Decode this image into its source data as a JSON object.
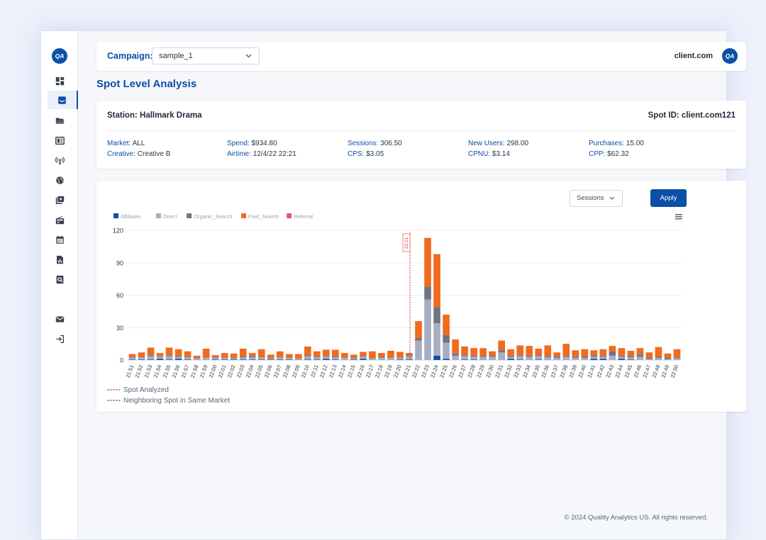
{
  "brand": {
    "logo_text": "QA",
    "accent": "#0b4fa6"
  },
  "sidebar": {
    "items": [
      {
        "icon": "dashboard-icon",
        "active": false
      },
      {
        "icon": "inbox-icon",
        "active": true
      },
      {
        "icon": "folder-open-icon",
        "active": false
      },
      {
        "icon": "newspaper-icon",
        "active": false
      },
      {
        "icon": "broadcast-icon",
        "active": false
      },
      {
        "icon": "globe-icon",
        "active": false
      },
      {
        "icon": "video-library-icon",
        "active": false
      },
      {
        "icon": "radio-icon",
        "active": false
      },
      {
        "icon": "calendar-icon",
        "active": false
      },
      {
        "icon": "report-icon",
        "active": false
      },
      {
        "icon": "search-document-icon",
        "active": false
      },
      {
        "icon": "mail-icon",
        "active": false
      },
      {
        "icon": "logout-icon",
        "active": false
      }
    ]
  },
  "header": {
    "campaign_label": "Campaign:",
    "campaign_value": "sample_1",
    "client_name": "client.com",
    "client_logo_text": "QA"
  },
  "page": {
    "title": "Spot Level Analysis"
  },
  "info": {
    "station_label": "Station:",
    "station_value": "Hallmark Drama",
    "spot_id_label": "Spot ID:",
    "spot_id_value": "client.com121",
    "market_label": "Market:",
    "market_value": "ALL",
    "creative_label": "Creative:",
    "creative_value": "Creative B",
    "spend_label": "Spend:",
    "spend_value": "$934.80",
    "airtime_label": "Airtime:",
    "airtime_value": "12/4/22 22:21",
    "sessions_label": "Sessions:",
    "sessions_value": "306.50",
    "cps_label": "CPS:",
    "cps_value": "$3.05",
    "newusers_label": "New Users:",
    "newusers_value": "298.00",
    "cpnu_label": "CPNU:",
    "cpnu_value": "$3.14",
    "purchases_label": "Purchases:",
    "purchases_value": "15.00",
    "cpp_label": "CPP:",
    "cpp_value": "$62.32"
  },
  "controls": {
    "metric_select": "Sessions",
    "apply_label": "Apply"
  },
  "chart_data": {
    "type": "bar",
    "stacked": true,
    "ylim": [
      0,
      120
    ],
    "yticks": [
      0,
      30,
      60,
      90,
      120
    ],
    "grid": true,
    "legend_position": "top-left",
    "categories": [
      "21:51",
      "21:52",
      "21:53",
      "21:54",
      "21:55",
      "21:56",
      "21:57",
      "21:58",
      "21:59",
      "22:00",
      "22:01",
      "22:02",
      "22:03",
      "22:04",
      "22:05",
      "22:06",
      "22:07",
      "22:08",
      "22:09",
      "22:10",
      "22:11",
      "22:12",
      "22:13",
      "22:14",
      "22:15",
      "22:16",
      "22:17",
      "22:18",
      "22:19",
      "22:20",
      "22:21",
      "22:22",
      "22:23",
      "22:24",
      "22:25",
      "22:26",
      "22:27",
      "22:28",
      "22:29",
      "22:30",
      "22:31",
      "22:32",
      "22:33",
      "22:34",
      "22:35",
      "22:36",
      "22:37",
      "22:38",
      "22:39",
      "22:40",
      "22:41",
      "22:42",
      "22:43",
      "22:44",
      "22:45",
      "22:46",
      "22:47",
      "22:48",
      "22:49",
      "22:50"
    ],
    "series": [
      {
        "name": "Affiliates",
        "color": "#0b4fa6",
        "values": [
          0.5,
          0.5,
          0.5,
          1,
          0.5,
          1,
          0.5,
          0,
          0,
          0.5,
          0.5,
          0.5,
          0.5,
          0.5,
          0.5,
          0.5,
          0.5,
          0.5,
          0,
          0.5,
          0.5,
          1,
          0.5,
          0,
          0.5,
          1,
          0,
          0,
          0,
          0.5,
          0.5,
          0,
          0,
          4,
          1,
          0,
          0.5,
          0.5,
          0,
          0,
          0,
          1,
          0.5,
          0,
          0.5,
          0,
          0,
          0,
          0,
          0,
          1,
          1,
          0,
          1,
          0.5,
          0,
          0,
          0,
          0,
          0
        ]
      },
      {
        "name": "Direct",
        "color": "#a8adc4",
        "values": [
          1.5,
          2,
          3,
          2,
          3,
          2,
          2,
          1.5,
          2,
          1.5,
          1.5,
          1,
          2,
          2,
          2,
          1,
          2,
          1.5,
          1,
          3,
          2,
          2,
          2,
          2,
          1,
          2,
          1.5,
          2,
          2,
          1.5,
          3,
          18,
          56,
          30,
          15,
          4,
          3,
          2.5,
          3,
          3,
          7,
          2,
          3,
          3,
          3,
          2.5,
          2,
          3,
          2,
          2,
          2,
          2,
          4,
          2,
          2,
          3,
          1,
          2,
          1,
          1.5
        ]
      },
      {
        "name": "Organic_Search",
        "color": "#707483",
        "values": [
          0.5,
          0.5,
          1,
          0.5,
          1,
          1,
          0.5,
          0.5,
          0.5,
          0.5,
          0.5,
          0.5,
          1,
          1,
          0.5,
          0.5,
          0.5,
          0.5,
          0.5,
          1,
          0.5,
          0.5,
          1,
          0.5,
          0.5,
          0.5,
          0.5,
          0.5,
          0.5,
          0.5,
          1,
          2,
          12,
          15,
          7,
          2,
          1,
          1,
          1,
          1,
          2,
          1,
          1,
          1,
          1,
          1,
          1,
          1,
          1,
          1,
          1,
          1,
          4,
          1,
          1,
          2,
          1,
          1,
          1,
          1
        ]
      },
      {
        "name": "Paid_Search",
        "color": "#f26a1b",
        "values": [
          3,
          4,
          7,
          3,
          7,
          6,
          5,
          2,
          8,
          2,
          4,
          4,
          7,
          3,
          7,
          3,
          5,
          3,
          4,
          8,
          5,
          6,
          6,
          4,
          3,
          4,
          6,
          4,
          6,
          5,
          2,
          16,
          45,
          49,
          19,
          13,
          8,
          7,
          7,
          4,
          9,
          6,
          9,
          9,
          6,
          10,
          4,
          11,
          6,
          7,
          5,
          6,
          5,
          7,
          5,
          6,
          5,
          9,
          4,
          7.5
        ]
      },
      {
        "name": "Referral",
        "color": "#e0566d",
        "values": [
          0,
          0,
          0,
          0,
          0,
          0,
          0,
          0,
          0,
          0,
          0,
          0,
          0,
          0,
          0,
          0,
          0,
          0,
          0,
          0,
          0,
          0,
          0,
          0,
          0,
          0,
          0,
          0,
          0,
          0,
          0,
          0,
          0,
          0,
          0,
          0,
          0,
          0,
          0,
          0,
          0,
          0,
          0,
          0,
          0,
          0,
          0,
          0,
          0,
          0,
          0,
          0,
          0,
          0,
          0,
          0,
          0,
          0,
          0,
          0
        ]
      }
    ],
    "spot_marker": {
      "x": "22:21",
      "label": "22:21",
      "color": "#e53935"
    },
    "annotations": [
      {
        "label": "Spot Analyzed",
        "style": "dashed",
        "color": "#e53935"
      },
      {
        "label": "Neighboring Spot in Same Market",
        "style": "dashed",
        "color": "#2e7d32"
      }
    ]
  },
  "footer": {
    "copyright": "© 2024 Quality Analytics US. All rights reserved."
  }
}
